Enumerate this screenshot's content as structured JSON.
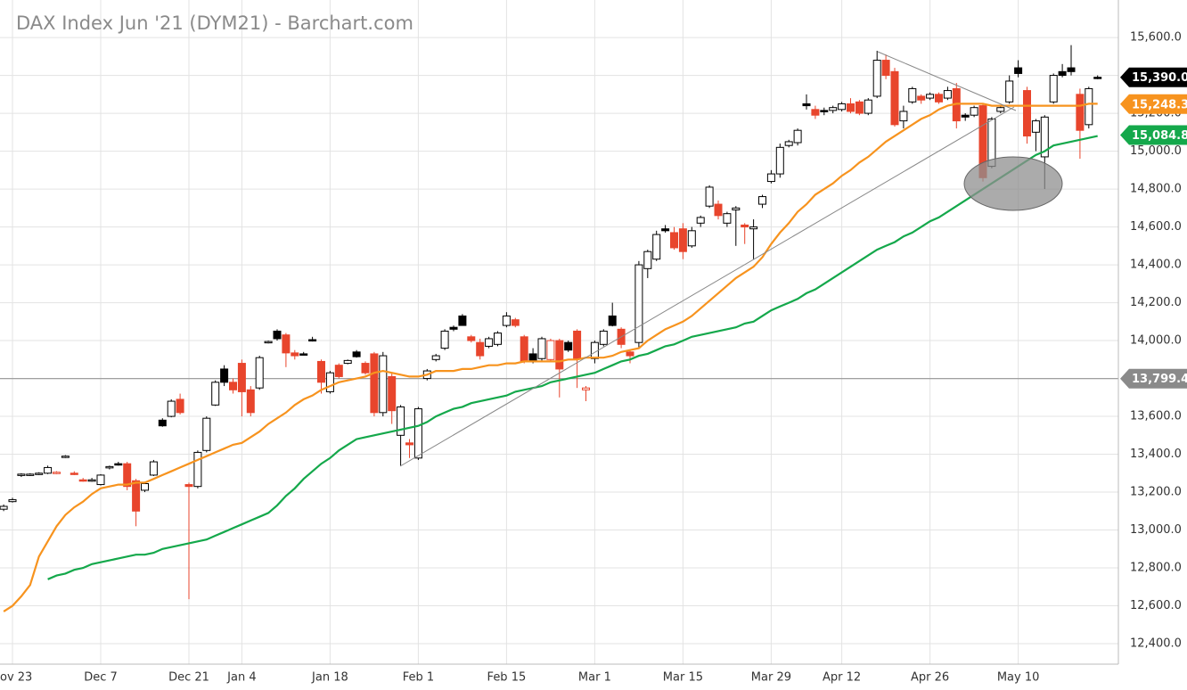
{
  "chart_data": {
    "type": "candlestick",
    "title": "DAX Index Jun '21 (DYM21) - Barchart.com",
    "categories": [
      null,
      "ov 23",
      null,
      null,
      null,
      null,
      null,
      null,
      null,
      null,
      null,
      "Dec 7",
      null,
      null,
      null,
      null,
      null,
      null,
      null,
      null,
      null,
      "Dec 21",
      null,
      null,
      null,
      null,
      null,
      "Jan 4",
      null,
      null,
      null,
      null,
      null,
      null,
      null,
      null,
      null,
      "Jan 18",
      null,
      null,
      null,
      null,
      null,
      null,
      null,
      null,
      null,
      "Feb 1",
      null,
      null,
      null,
      null,
      null,
      null,
      null,
      null,
      null,
      "Feb 15",
      null,
      null,
      null,
      null,
      null,
      null,
      null,
      null,
      null,
      "Mar 1",
      null,
      null,
      null,
      null,
      null,
      null,
      null,
      null,
      null,
      "Mar 15",
      null,
      null,
      null,
      null,
      null,
      null,
      null,
      null,
      null,
      "Mar 29",
      null,
      null,
      null,
      null,
      null,
      null,
      null,
      "Apr 12",
      null,
      null,
      null,
      null,
      null,
      null,
      null,
      null,
      null,
      "Apr 26",
      null,
      null,
      null,
      null,
      null,
      null,
      null,
      null,
      null,
      "May 10",
      null,
      null,
      null,
      null,
      null,
      null,
      null,
      null,
      null
    ],
    "open": [
      13110,
      13150,
      13290,
      13290,
      13295,
      13300,
      13300,
      13385,
      13300,
      13265,
      13260,
      13240,
      13330,
      13350,
      13350,
      13260,
      13210,
      13290,
      13580,
      13600,
      13690,
      13240,
      13230,
      13420,
      13660,
      13850,
      13780,
      13880,
      13740,
      13750,
      13990,
      14050,
      14030,
      13935,
      13930,
      14005,
      13890,
      13730,
      13870,
      13880,
      13940,
      13880,
      13930,
      13620,
      13810,
      13500,
      13460,
      13380,
      13800,
      13900,
      13960,
      14070,
      14130,
      14020,
      13990,
      13970,
      13980,
      14080,
      14110,
      14020,
      13930,
      13905,
      13900,
      14000,
      13990,
      14050,
      13740,
      13905,
      13980,
      14130,
      14060,
      13940,
      13990,
      14380,
      14430,
      14590,
      14570,
      14590,
      14500,
      14620,
      14710,
      14720,
      14620,
      14690,
      14610,
      14590,
      14720,
      14840,
      14880,
      15030,
      15045,
      15250,
      15220,
      15215,
      15215,
      15220,
      15250,
      15260,
      15200,
      15290,
      15480,
      15420,
      15160,
      15260,
      15290,
      15280,
      15300,
      15280,
      15330,
      15190,
      15190,
      15240,
      14920,
      15210,
      15260,
      15440,
      15320,
      15100,
      14970,
      15260,
      15420,
      15440,
      15300,
      15140,
      15390
    ],
    "high": [
      13135,
      13170,
      13300,
      13300,
      13305,
      13340,
      13310,
      13395,
      13310,
      13275,
      13275,
      13295,
      13340,
      13360,
      13360,
      13270,
      13255,
      13370,
      13590,
      13690,
      13720,
      13250,
      13420,
      13600,
      13790,
      13870,
      13800,
      13900,
      13760,
      13920,
      14000,
      14060,
      14040,
      13950,
      13940,
      14020,
      13900,
      13840,
      13880,
      13900,
      13950,
      13890,
      13940,
      13940,
      13830,
      13660,
      13480,
      13650,
      13850,
      13930,
      14060,
      14080,
      14140,
      14030,
      14010,
      14020,
      14050,
      14150,
      14120,
      14030,
      13960,
      14020,
      14010,
      14010,
      14000,
      14060,
      13760,
      14000,
      14060,
      14200,
      14070,
      13950,
      14420,
      14480,
      14580,
      14610,
      14600,
      14620,
      14600,
      14660,
      14820,
      14740,
      14680,
      14710,
      14620,
      14640,
      14770,
      14900,
      15040,
      15060,
      15120,
      15300,
      15240,
      15230,
      15240,
      15260,
      15280,
      15270,
      15280,
      15530,
      15510,
      15440,
      15240,
      15340,
      15300,
      15310,
      15310,
      15340,
      15360,
      15200,
      15240,
      15250,
      15180,
      15240,
      15400,
      15480,
      15340,
      15170,
      15190,
      15410,
      15460,
      15560,
      15330,
      15340,
      15400
    ],
    "low": [
      13100,
      13145,
      13280,
      13285,
      13290,
      13295,
      13295,
      13380,
      13290,
      13255,
      13255,
      13235,
      13320,
      13340,
      13210,
      13020,
      13200,
      13285,
      13545,
      13595,
      13610,
      12635,
      13220,
      13410,
      13655,
      13760,
      13720,
      13600,
      13600,
      13740,
      13985,
      14000,
      13860,
      13900,
      13925,
      13995,
      13720,
      13720,
      13800,
      13875,
      13910,
      13820,
      13600,
      13600,
      13560,
      13340,
      13380,
      13370,
      13790,
      13890,
      13950,
      14050,
      14080,
      13990,
      13900,
      13960,
      13970,
      14070,
      14070,
      13880,
      13880,
      13890,
      13890,
      13700,
      13940,
      13750,
      13680,
      13880,
      13970,
      14075,
      13960,
      13880,
      13960,
      14330,
      14420,
      14570,
      14480,
      14430,
      14490,
      14600,
      14700,
      14640,
      14600,
      14500,
      14510,
      14430,
      14700,
      14830,
      14860,
      15020,
      15030,
      15220,
      15170,
      15190,
      15200,
      15210,
      15200,
      15190,
      15190,
      15280,
      15380,
      15130,
      15120,
      15250,
      15250,
      15270,
      15250,
      15270,
      15120,
      15160,
      15180,
      14840,
      14910,
      15200,
      15250,
      15390,
      15040,
      15000,
      14800,
      15250,
      15390,
      15400,
      14960,
      15120,
      15380
    ],
    "close": [
      13125,
      13160,
      13295,
      13295,
      13300,
      13330,
      13305,
      13390,
      13300,
      13260,
      13265,
      13290,
      13335,
      13345,
      13230,
      13100,
      13245,
      13360,
      13550,
      13680,
      13620,
      13230,
      13410,
      13590,
      13780,
      13780,
      13740,
      13730,
      13620,
      13910,
      13995,
      14010,
      13935,
      13920,
      13930,
      14000,
      13780,
      13830,
      13810,
      13895,
      13915,
      13830,
      13620,
      13920,
      13630,
      13650,
      13450,
      13640,
      13840,
      13920,
      14050,
      14060,
      14080,
      14000,
      13920,
      14010,
      14040,
      14130,
      14080,
      13890,
      13890,
      14010,
      14000,
      13850,
      13950,
      13905,
      13750,
      13990,
      14050,
      14080,
      13980,
      13920,
      14400,
      14470,
      14560,
      14580,
      14490,
      14470,
      14580,
      14650,
      14810,
      14660,
      14670,
      14700,
      14600,
      14600,
      14760,
      14880,
      15020,
      15050,
      15110,
      15240,
      15190,
      15210,
      15230,
      15250,
      15210,
      15200,
      15270,
      15480,
      15400,
      15140,
      15210,
      15330,
      15270,
      15300,
      15260,
      15320,
      15160,
      15180,
      15230,
      14860,
      15170,
      15230,
      15370,
      15410,
      15080,
      15160,
      15180,
      15400,
      15400,
      15420,
      15110,
      15330,
      15390
    ],
    "up_color": "#000000",
    "down_color": "#e8452c",
    "lines": [
      {
        "color": "#f7931e",
        "values": [
          12570,
          12600,
          12650,
          12710,
          12860,
          12940,
          13020,
          13080,
          13120,
          13150,
          13190,
          13220,
          13230,
          13240,
          13240,
          13250,
          13250,
          13270,
          13290,
          13310,
          13330,
          13350,
          13370,
          13390,
          13410,
          13430,
          13450,
          13460,
          13490,
          13520,
          13560,
          13590,
          13620,
          13660,
          13690,
          13710,
          13740,
          13760,
          13780,
          13790,
          13800,
          13810,
          13830,
          13840,
          13830,
          13820,
          13810,
          13810,
          13820,
          13840,
          13840,
          13840,
          13850,
          13850,
          13860,
          13870,
          13870,
          13880,
          13880,
          13890,
          13890,
          13890,
          13890,
          13890,
          13900,
          13900,
          13910,
          13910,
          13910,
          13920,
          13940,
          13950,
          13960,
          14000,
          14030,
          14060,
          14080,
          14100,
          14130,
          14170,
          14210,
          14250,
          14290,
          14330,
          14360,
          14390,
          14440,
          14510,
          14570,
          14620,
          14680,
          14720,
          14770,
          14800,
          14830,
          14870,
          14900,
          14940,
          14970,
          15010,
          15050,
          15080,
          15110,
          15140,
          15170,
          15190,
          15220,
          15240,
          15250,
          15250,
          15250,
          15250,
          15240,
          15240,
          15240,
          15240,
          15240,
          15240,
          15240,
          15240,
          15240,
          15240,
          15240,
          15250,
          15250
        ]
      },
      {
        "color": "#14a84b",
        "values": [
          null,
          null,
          null,
          null,
          null,
          12740,
          12760,
          12770,
          12790,
          12800,
          12820,
          12830,
          12840,
          12850,
          12860,
          12870,
          12870,
          12880,
          12900,
          12910,
          12920,
          12930,
          12940,
          12950,
          12970,
          12990,
          13010,
          13030,
          13050,
          13070,
          13090,
          13130,
          13180,
          13220,
          13270,
          13310,
          13350,
          13380,
          13420,
          13450,
          13480,
          13490,
          13500,
          13510,
          13520,
          13530,
          13540,
          13550,
          13570,
          13600,
          13620,
          13640,
          13650,
          13670,
          13680,
          13690,
          13700,
          13710,
          13730,
          13740,
          13750,
          13760,
          13780,
          13790,
          13800,
          13810,
          13820,
          13830,
          13850,
          13870,
          13890,
          13900,
          13920,
          13930,
          13950,
          13970,
          13980,
          14000,
          14020,
          14030,
          14040,
          14050,
          14060,
          14070,
          14090,
          14100,
          14130,
          14160,
          14180,
          14200,
          14220,
          14250,
          14270,
          14300,
          14330,
          14360,
          14390,
          14420,
          14450,
          14480,
          14500,
          14520,
          14550,
          14570,
          14600,
          14630,
          14650,
          14680,
          14710,
          14740,
          14770,
          14800,
          14830,
          14860,
          14890,
          14920,
          14950,
          14980,
          15000,
          15030,
          15040,
          15050,
          15060,
          15070,
          15080
        ]
      }
    ],
    "price_tags": [
      {
        "value": 15390,
        "label": "15,390.0",
        "color": "#000000"
      },
      {
        "value": 15248.3,
        "label": "15,248.3",
        "color": "#f7931e"
      },
      {
        "value": 15084.8,
        "label": "15,084.8",
        "color": "#14a84b"
      },
      {
        "value": 13799.4,
        "label": "13,799.4",
        "color": "#8a8a8a",
        "rule": true
      }
    ],
    "ylim": [
      12292,
      15798
    ],
    "yticks": [
      {
        "value": 12400,
        "label": "12,400.0"
      },
      {
        "value": 12600,
        "label": "12,600.0"
      },
      {
        "value": 12800,
        "label": "12,800.0"
      },
      {
        "value": 13000,
        "label": "13,000.0"
      },
      {
        "value": 13200,
        "label": "13,200.0"
      },
      {
        "value": 13400,
        "label": "13,400.0"
      },
      {
        "value": 13600,
        "label": "13,600.0"
      },
      {
        "value": 13800,
        "label": "13,800.0"
      },
      {
        "value": 14000,
        "label": "14,000.0"
      },
      {
        "value": 14200,
        "label": "14,200.0"
      },
      {
        "value": 14400,
        "label": "14,400.0"
      },
      {
        "value": 14600,
        "label": "14,600.0"
      },
      {
        "value": 14800,
        "label": "14,800.0"
      },
      {
        "value": 15000,
        "label": "15,000.0"
      },
      {
        "value": 15200,
        "label": "15,200.0"
      },
      {
        "value": 15400,
        "label": "15,400.0"
      },
      {
        "value": 15600,
        "label": "15,600.0"
      }
    ],
    "grid": true
  }
}
